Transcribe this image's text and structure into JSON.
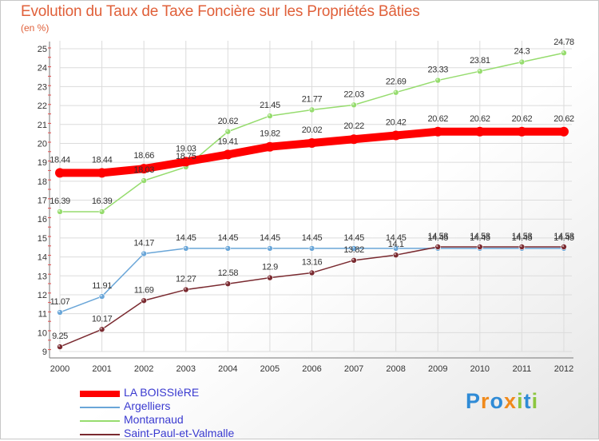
{
  "title": "Evolution du Taux de Taxe Foncière sur les Propriétés Bâties",
  "subtitle": "(en %)",
  "brand": {
    "text": "Proxiti",
    "colors": [
      "#2f8bd6",
      "#f08a1c",
      "#8cc63f"
    ]
  },
  "chart_data": {
    "type": "line",
    "title": "Evolution du Taux de Taxe Foncière sur les Propriétés Bâties",
    "ylabel": "(en %)",
    "xlabel": "",
    "ylim": [
      9,
      25
    ],
    "yticks": [
      "9",
      "10",
      "11",
      "12",
      "13",
      "14",
      "15",
      "16",
      "17",
      "18",
      "19",
      "20",
      "21",
      "22",
      "23",
      "24",
      "25"
    ],
    "categories": [
      "2000",
      "2001",
      "2002",
      "2003",
      "2004",
      "2005",
      "2006",
      "2007",
      "2008",
      "2009",
      "2010",
      "2011",
      "2012"
    ],
    "grid": true,
    "legend_position": "bottom-left",
    "series": [
      {
        "name": "LA BOISSIèRE",
        "color": "#ff0000",
        "values": [
          18.44,
          18.44,
          18.66,
          19.03,
          19.41,
          19.82,
          20.02,
          20.22,
          20.42,
          20.62,
          20.62,
          20.62,
          20.62
        ],
        "labels": [
          "18.44",
          "18.44",
          "18.66",
          "19.03",
          "19.41",
          "19.82",
          "20.02",
          "20.22",
          "20.42",
          "20.62",
          "20.62",
          "20.62",
          "20.62"
        ]
      },
      {
        "name": "Argelliers",
        "color": "#6aa6d8",
        "values": [
          11.07,
          11.91,
          14.17,
          14.45,
          14.45,
          14.45,
          14.45,
          14.45,
          14.45,
          14.45,
          14.45,
          14.45,
          14.45
        ],
        "labels": [
          "11.07",
          "11.91",
          "14.17",
          "14.45",
          "14.45",
          "14.45",
          "14.45",
          "14.45",
          "14.45",
          "14.45",
          "14.45",
          "14.45",
          "14.45"
        ]
      },
      {
        "name": "Montarnaud",
        "color": "#96dc6e",
        "values": [
          16.39,
          16.39,
          18.03,
          18.75,
          20.62,
          21.45,
          21.77,
          22.03,
          22.69,
          23.33,
          23.81,
          24.3,
          24.78
        ],
        "labels": [
          "16.39",
          "16.39",
          "18.03",
          "18.75",
          "20.62",
          "21.45",
          "21.77",
          "22.03",
          "22.69",
          "23.33",
          "23.81",
          "24.3",
          "24.78"
        ]
      },
      {
        "name": "Saint-Paul-et-Valmalle",
        "color": "#7a2a30",
        "values": [
          9.25,
          10.17,
          11.69,
          12.27,
          12.58,
          12.9,
          13.16,
          13.82,
          14.1,
          14.53,
          14.53,
          14.53,
          14.53
        ],
        "labels": [
          "9.25",
          "10.17",
          "11.69",
          "12.27",
          "12.58",
          "12.9",
          "13.16",
          "13.82",
          "14.1",
          "14.53",
          "14.53",
          "14.53",
          "14.53"
        ]
      }
    ]
  }
}
